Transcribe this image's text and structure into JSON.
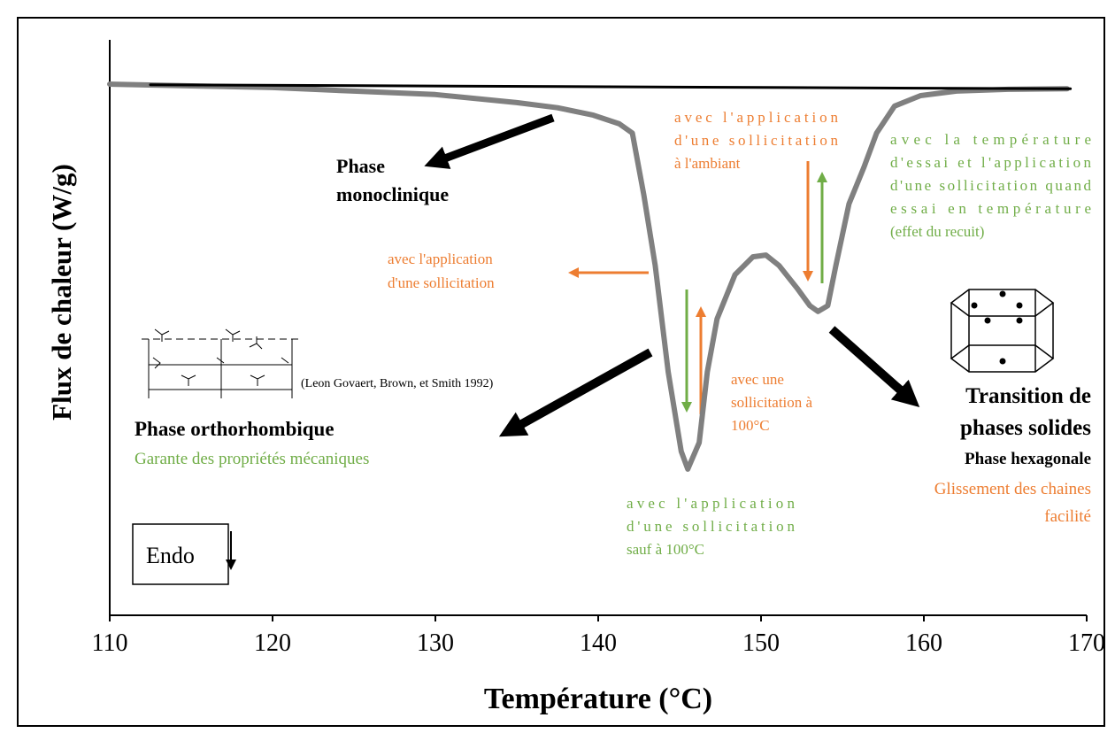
{
  "chart_data": {
    "type": "line",
    "x_label": "Température (°C)",
    "y_label": "Flux de chaleur (W/g)",
    "xlim": [
      110,
      170
    ],
    "xticks": [
      110,
      120,
      130,
      140,
      150,
      160,
      170
    ],
    "ylim": [
      0,
      1
    ],
    "series": [
      {
        "color": "#808080",
        "x": [
          110,
          115,
          120,
          125,
          130,
          135,
          137.5,
          139.7,
          141.3,
          142.1,
          142.8,
          143.5,
          144.3,
          145.1,
          145.5,
          146.2,
          146.7,
          147.3,
          148.4,
          149.5,
          150.3,
          151.1,
          152.2,
          153,
          153.5,
          154.1,
          154.6,
          155.4,
          156.3,
          157.1,
          158.2,
          159.8,
          162,
          165.2,
          168.8
        ],
        "values": [
          0.923,
          0.92,
          0.917,
          0.911,
          0.905,
          0.891,
          0.882,
          0.869,
          0.854,
          0.838,
          0.731,
          0.608,
          0.423,
          0.285,
          0.254,
          0.3,
          0.423,
          0.515,
          0.592,
          0.623,
          0.626,
          0.608,
          0.569,
          0.538,
          0.528,
          0.538,
          0.608,
          0.715,
          0.777,
          0.838,
          0.885,
          0.903,
          0.911,
          0.914,
          0.915
        ]
      },
      {
        "color": "#000000",
        "x": [
          112.5,
          169
        ],
        "values": [
          0.922,
          0.915
        ]
      }
    ],
    "annotations": [
      {
        "lines": [
          "Phase",
          "monoclinique"
        ],
        "color": "#000000"
      },
      {
        "lines": [
          "avec l'application",
          "d'une sollicitation"
        ],
        "color": "#ed7d31"
      },
      {
        "lines": [
          "avec l'application",
          "d'une sollicitation",
          "à l'ambiant"
        ],
        "color": "#ed7d31"
      },
      {
        "lines": [
          "avec la température",
          "d'essai et l'application",
          "d'une sollicitation quand",
          "essai en température",
          "(effet du recuit)"
        ],
        "color": "#70ad47"
      },
      {
        "lines": [
          "(Leon Govaert, Brown, et Smith 1992)"
        ],
        "color": "#000000"
      },
      {
        "lines": [
          "Phase orthorhombique"
        ],
        "color": "#000000"
      },
      {
        "lines": [
          "Garante des propriétés mécaniques"
        ],
        "color": "#70ad47"
      },
      {
        "lines": [
          "avec une",
          "sollicitation à",
          "100°C"
        ],
        "color": "#ed7d31"
      },
      {
        "lines": [
          "avec l'application",
          "d'une sollicitation",
          "sauf à 100°C"
        ],
        "color": "#70ad47"
      },
      {
        "lines": [
          "Transition de",
          "phases solides"
        ],
        "color": "#000000"
      },
      {
        "lines": [
          "Phase hexagonale"
        ],
        "color": "#000000"
      },
      {
        "lines": [
          "Glissement des chaines",
          "facilité"
        ],
        "color": "#ed7d31"
      },
      {
        "lines": [
          "Endo"
        ],
        "color": "#000000"
      }
    ]
  }
}
